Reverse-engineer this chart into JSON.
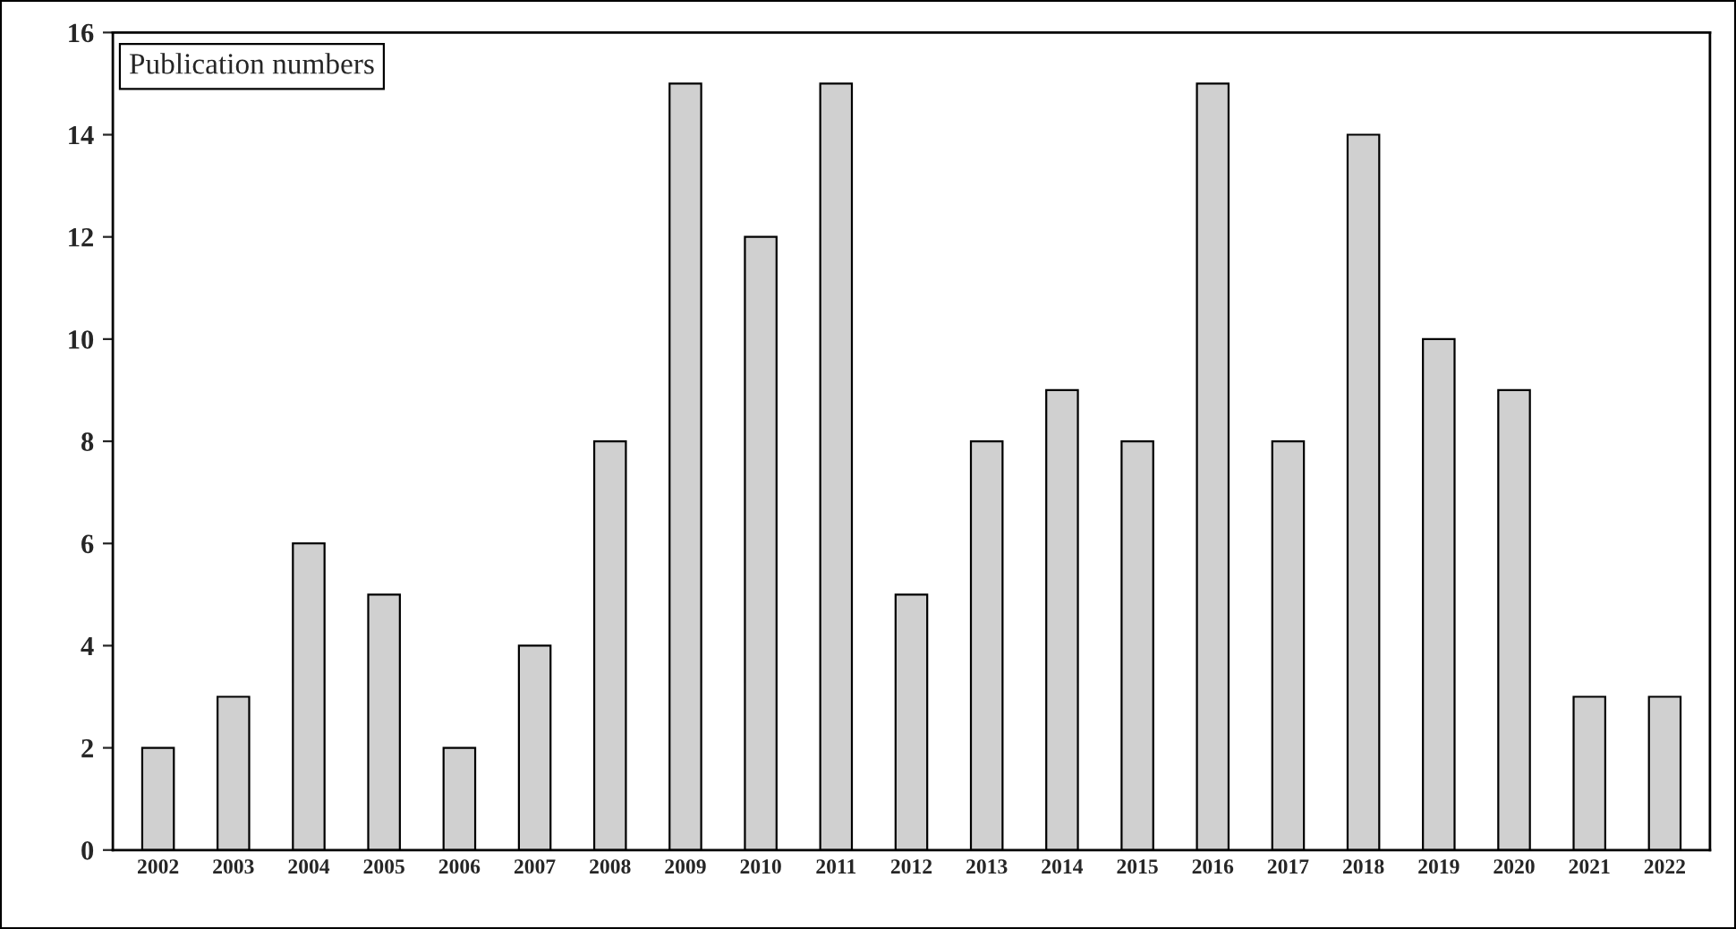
{
  "chart_data": {
    "type": "bar",
    "categories": [
      "2002",
      "2003",
      "2004",
      "2005",
      "2006",
      "2007",
      "2008",
      "2009",
      "2010",
      "2011",
      "2012",
      "2013",
      "2014",
      "2015",
      "2016",
      "2017",
      "2018",
      "2019",
      "2020",
      "2021",
      "2022"
    ],
    "values": [
      2,
      3,
      6,
      5,
      2,
      4,
      8,
      15,
      12,
      15,
      5,
      8,
      9,
      8,
      15,
      8,
      14,
      10,
      9,
      3,
      3
    ],
    "color": "#d0d0d0",
    "ylim": [
      0,
      16
    ],
    "yticks": [
      0,
      2,
      4,
      6,
      8,
      10,
      12,
      14,
      16
    ],
    "annotations": [
      "Publication numbers"
    ],
    "grid": false
  }
}
